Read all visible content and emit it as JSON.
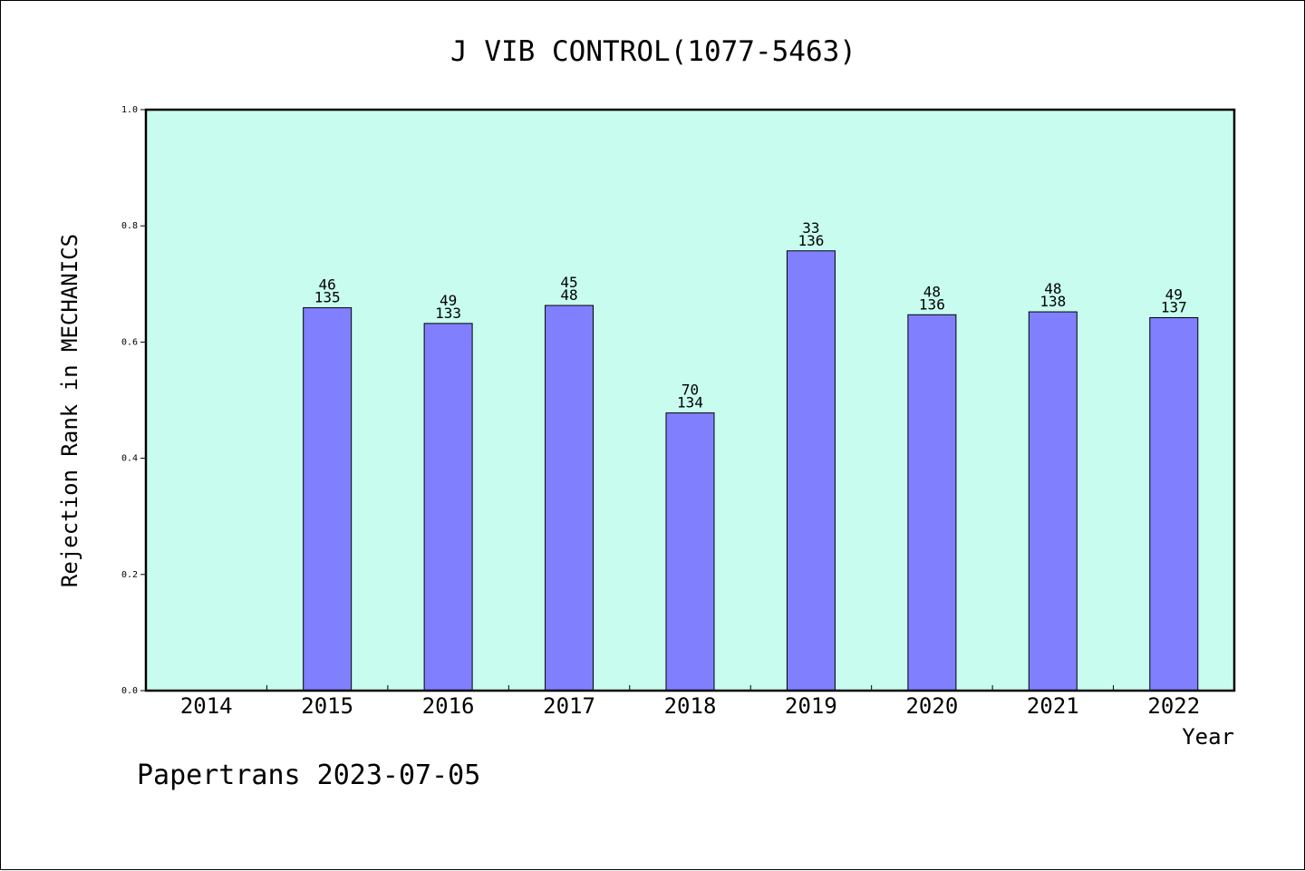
{
  "footer": {
    "credit": "Papertrans 2023-07-05"
  },
  "colors": {
    "plot_background": "#c8fcee",
    "bar_fill": "#8080ff",
    "bar_stroke": "#000000",
    "page_background": "#ffffff"
  },
  "chart_data": {
    "type": "bar",
    "title": "J VIB CONTROL(1077-5463)",
    "xlabel": "Year",
    "ylabel": "Rejection Rank in MECHANICS",
    "ylim": [
      0,
      1.0
    ],
    "yticks": [
      "0.0",
      "0.2",
      "0.4",
      "0.6",
      "0.8",
      "1.0"
    ],
    "grid": false,
    "legend": "none",
    "categories": [
      "2014",
      "2015",
      "2016",
      "2017",
      "2018",
      "2019",
      "2020",
      "2021",
      "2022"
    ],
    "values": [
      null,
      0.659,
      0.632,
      0.663,
      0.478,
      0.757,
      0.647,
      0.652,
      0.642
    ],
    "labels_top": [
      null,
      "46",
      "49",
      "45",
      "70",
      "33",
      "48",
      "48",
      "49"
    ],
    "labels_bottom": [
      null,
      "135",
      "133",
      "48",
      "134",
      "136",
      "136",
      "138",
      "137"
    ]
  }
}
